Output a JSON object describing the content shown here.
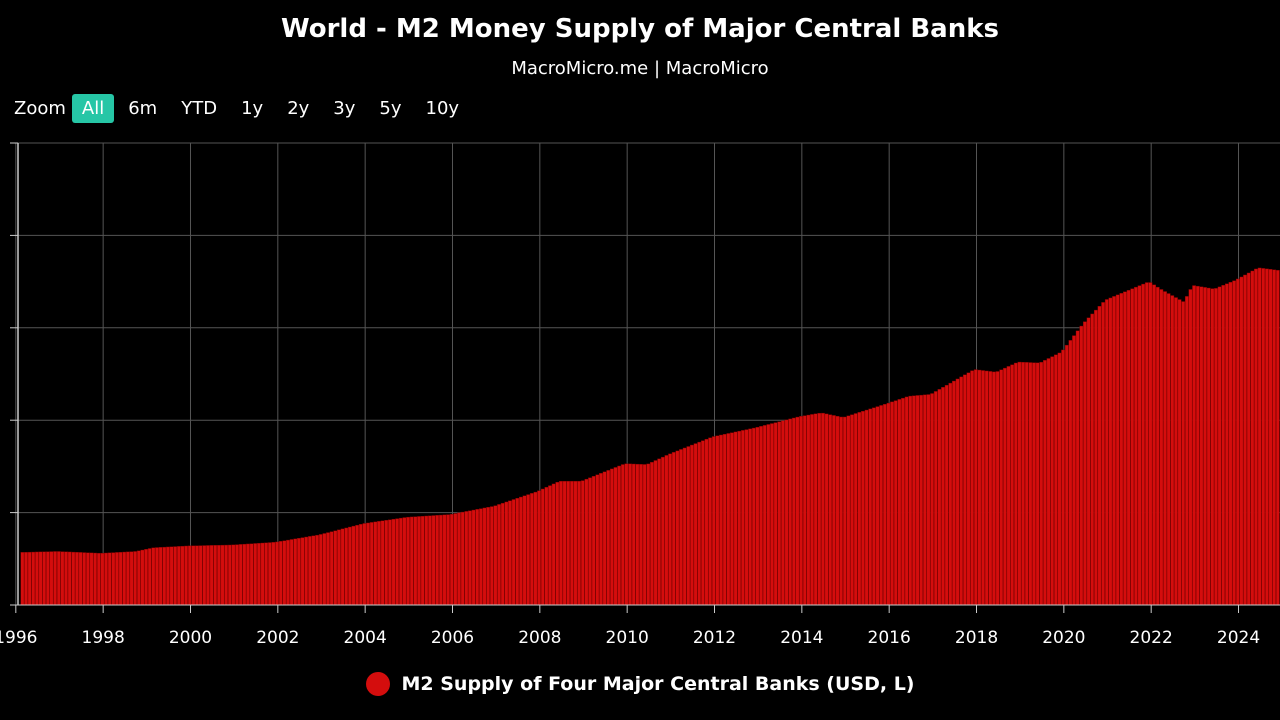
{
  "header": {
    "title": "World - M2 Money Supply of Major Central Banks",
    "subtitle": "MacroMicro.me | MacroMicro"
  },
  "zoom": {
    "label": "Zoom",
    "buttons": [
      "All",
      "6m",
      "YTD",
      "1y",
      "2y",
      "3y",
      "5y",
      "10y"
    ],
    "active": "All"
  },
  "colors": {
    "background": "#000000",
    "bar": "#d40d0d",
    "bar_edge": "#7a0000",
    "grid": "#555555",
    "zoom_active": "#26c6a6"
  },
  "chart_data": {
    "type": "bar",
    "xlim": [
      1996.1,
      2025.0
    ],
    "ylim": [
      0,
      50
    ],
    "x_ticks": [
      "1996",
      "1998",
      "2000",
      "2002",
      "2004",
      "2006",
      "2008",
      "2010",
      "2012",
      "2014",
      "2016",
      "2018",
      "2020",
      "2022",
      "2024"
    ],
    "y_ticks": [
      0,
      10,
      20,
      30,
      40,
      50
    ],
    "grid": true,
    "legend": {
      "position": "bottom-center",
      "label": "M2 Supply of Four Major Central Banks (USD, L)"
    },
    "series": [
      {
        "name": "M2 Supply of Four Major Central Banks (USD, L)",
        "anchors": [
          [
            1996.2,
            5.7
          ],
          [
            1997.0,
            5.8
          ],
          [
            1998.0,
            5.6
          ],
          [
            1998.8,
            5.8
          ],
          [
            1999.2,
            6.2
          ],
          [
            2000.0,
            6.4
          ],
          [
            2001.0,
            6.5
          ],
          [
            2002.0,
            6.8
          ],
          [
            2003.0,
            7.6
          ],
          [
            2004.0,
            8.8
          ],
          [
            2005.0,
            9.5
          ],
          [
            2006.0,
            9.8
          ],
          [
            2007.0,
            10.7
          ],
          [
            2008.0,
            12.3
          ],
          [
            2008.5,
            13.4
          ],
          [
            2009.0,
            13.4
          ],
          [
            2010.0,
            15.3
          ],
          [
            2010.5,
            15.2
          ],
          [
            2011.0,
            16.3
          ],
          [
            2012.0,
            18.2
          ],
          [
            2013.0,
            19.2
          ],
          [
            2014.0,
            20.4
          ],
          [
            2014.5,
            20.8
          ],
          [
            2015.0,
            20.3
          ],
          [
            2016.0,
            21.8
          ],
          [
            2016.5,
            22.6
          ],
          [
            2017.0,
            22.8
          ],
          [
            2018.0,
            25.5
          ],
          [
            2018.5,
            25.2
          ],
          [
            2019.0,
            26.3
          ],
          [
            2019.5,
            26.2
          ],
          [
            2020.0,
            27.4
          ],
          [
            2020.5,
            30.5
          ],
          [
            2021.0,
            33.0
          ],
          [
            2021.5,
            34.0
          ],
          [
            2022.0,
            35.0
          ],
          [
            2022.3,
            34.1
          ],
          [
            2022.8,
            32.8
          ],
          [
            2023.0,
            34.6
          ],
          [
            2023.5,
            34.2
          ],
          [
            2024.0,
            35.2
          ],
          [
            2024.5,
            36.5
          ],
          [
            2025.0,
            36.2
          ]
        ]
      }
    ]
  }
}
